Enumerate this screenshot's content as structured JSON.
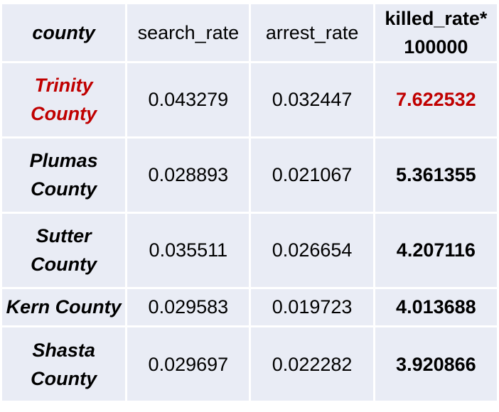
{
  "table": {
    "headers": {
      "county": "county",
      "search_rate": "search_rate",
      "arrest_rate": "arrest_rate",
      "killed_rate_line1": "killed_rate*",
      "killed_rate_line2": "100000"
    },
    "rows": [
      {
        "county_line1": "Trinity",
        "county_line2": "County",
        "search_rate": "0.043279",
        "arrest_rate": "0.032447",
        "killed_rate": "7.622532",
        "highlighted": true
      },
      {
        "county_line1": "Plumas",
        "county_line2": "County",
        "search_rate": "0.028893",
        "arrest_rate": "0.021067",
        "killed_rate": "5.361355",
        "highlighted": false
      },
      {
        "county_line1": "Sutter",
        "county_line2": "County",
        "search_rate": "0.035511",
        "arrest_rate": "0.026654",
        "killed_rate": "4.207116",
        "highlighted": false
      },
      {
        "county_line1": "Kern County",
        "county_line2": "",
        "search_rate": "0.029583",
        "arrest_rate": "0.019723",
        "killed_rate": "4.013688",
        "highlighted": false
      },
      {
        "county_line1": "Shasta",
        "county_line2": "County",
        "search_rate": "0.029697",
        "arrest_rate": "0.022282",
        "killed_rate": "3.920866",
        "highlighted": false
      }
    ]
  },
  "colors": {
    "cell_background": "#e9ecf5",
    "highlight": "#c00000",
    "text": "#000000"
  }
}
